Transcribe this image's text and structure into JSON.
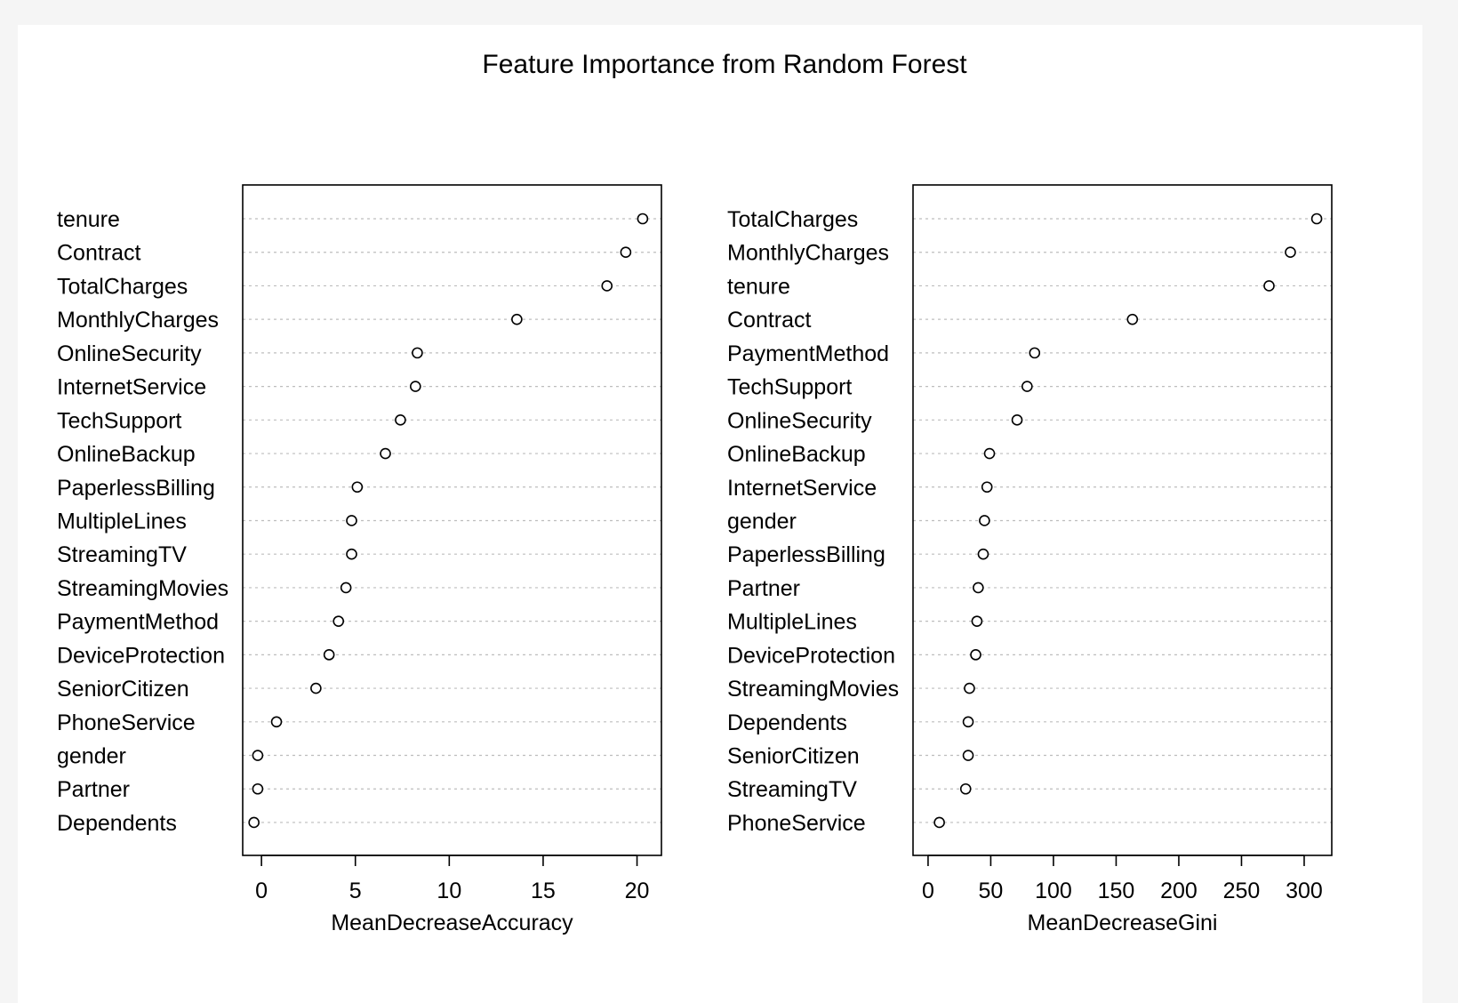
{
  "title": "Feature Importance from Random Forest",
  "chart_data": [
    {
      "type": "scatter",
      "variant": "dotchart",
      "xlabel": "MeanDecreaseAccuracy",
      "xlim": [
        -1,
        21.3
      ],
      "xticks": [
        0,
        5,
        10,
        15,
        20
      ],
      "grid": "horizontal dotted",
      "categories": [
        "tenure",
        "Contract",
        "TotalCharges",
        "MonthlyCharges",
        "OnlineSecurity",
        "InternetService",
        "TechSupport",
        "OnlineBackup",
        "PaperlessBilling",
        "MultipleLines",
        "StreamingTV",
        "StreamingMovies",
        "PaymentMethod",
        "DeviceProtection",
        "SeniorCitizen",
        "PhoneService",
        "gender",
        "Partner",
        "Dependents"
      ],
      "values": [
        20.3,
        19.4,
        18.4,
        13.6,
        8.3,
        8.2,
        7.4,
        6.6,
        5.1,
        4.8,
        4.8,
        4.5,
        4.1,
        3.6,
        2.9,
        0.8,
        -0.2,
        -0.2,
        -0.4
      ]
    },
    {
      "type": "scatter",
      "variant": "dotchart",
      "xlabel": "MeanDecreaseGini",
      "xlim": [
        -12,
        322
      ],
      "xticks": [
        0,
        50,
        100,
        150,
        200,
        250,
        300
      ],
      "grid": "horizontal dotted",
      "categories": [
        "TotalCharges",
        "MonthlyCharges",
        "tenure",
        "Contract",
        "PaymentMethod",
        "TechSupport",
        "OnlineSecurity",
        "OnlineBackup",
        "InternetService",
        "gender",
        "PaperlessBilling",
        "Partner",
        "MultipleLines",
        "DeviceProtection",
        "StreamingMovies",
        "Dependents",
        "SeniorCitizen",
        "StreamingTV",
        "PhoneService"
      ],
      "values": [
        310,
        289,
        272,
        163,
        85,
        79,
        71,
        49,
        47,
        45,
        44,
        40,
        39,
        38,
        33,
        32,
        32,
        30,
        9
      ]
    }
  ]
}
